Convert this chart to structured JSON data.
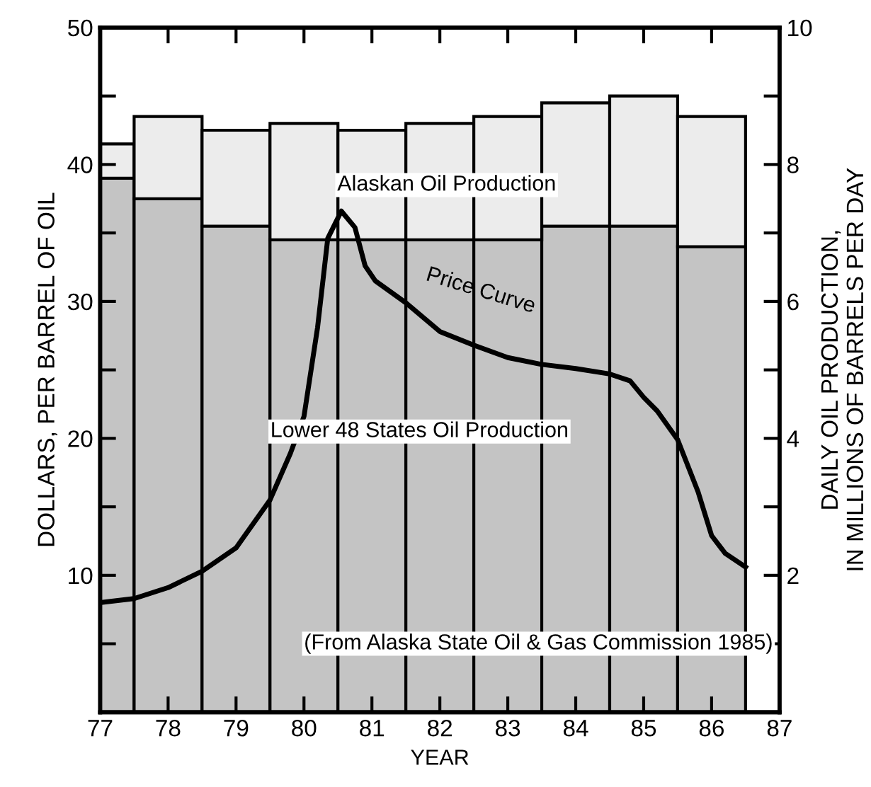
{
  "chart_data": {
    "type": "bar",
    "stacked": true,
    "xlabel": "YEAR",
    "ylabel": "DOLLARS, PER BARREL OF OIL",
    "y2label": "DAILY OIL PRODUCTION,\nIN MILLIONS OF BARRELS PER DAY",
    "x": [
      77,
      78,
      79,
      80,
      81,
      82,
      83,
      84,
      85,
      86
    ],
    "series": [
      {
        "name": "Lower 48 States Oil Production",
        "color": "#c4c4c4",
        "axis": "y2",
        "values": [
          7.8,
          7.5,
          7.1,
          6.9,
          6.9,
          6.9,
          6.9,
          7.1,
          7.1,
          6.8
        ]
      },
      {
        "name": "Alaskan Oil Production",
        "color": "#ececec",
        "axis": "y2",
        "values": [
          0.5,
          1.2,
          1.4,
          1.7,
          1.6,
          1.7,
          1.8,
          1.8,
          1.9,
          1.9
        ]
      },
      {
        "name": "Price Curve",
        "type": "line",
        "color": "#000000",
        "x": [
          77,
          77.5,
          78,
          78.5,
          79,
          79.5,
          79.8,
          80,
          80.2,
          80.35,
          80.55,
          80.75,
          80.9,
          81.05,
          81.5,
          82,
          82.5,
          83,
          83.5,
          84,
          84.5,
          84.8,
          85,
          85.2,
          85.5,
          85.8,
          86,
          86.2,
          86.5
        ],
        "values": [
          8.0,
          8.3,
          9.1,
          10.3,
          12.0,
          15.5,
          18.9,
          21.6,
          28.1,
          34.6,
          36.6,
          35.4,
          32.6,
          31.5,
          29.9,
          27.8,
          26.8,
          25.9,
          25.4,
          25.1,
          24.7,
          24.2,
          23.0,
          22.0,
          19.9,
          16.1,
          12.9,
          11.6,
          10.6
        ]
      }
    ],
    "xlim": [
      77,
      87
    ],
    "xticks": [
      77,
      78,
      79,
      80,
      81,
      82,
      83,
      84,
      85,
      86,
      87
    ],
    "ylim": [
      0,
      50
    ],
    "yticks": [
      {
        "value": 5,
        "label": null
      },
      10,
      {
        "value": 15,
        "label": null
      },
      20,
      {
        "value": 25,
        "label": null
      },
      30,
      {
        "value": 35,
        "label": null
      },
      40,
      {
        "value": 45,
        "label": null
      },
      50
    ],
    "y2lim": [
      0,
      10
    ],
    "y2ticks": [
      {
        "value": 1,
        "label": null
      },
      2,
      {
        "value": 3,
        "label": null
      },
      4,
      {
        "value": 5,
        "label": null
      },
      6,
      {
        "value": 7,
        "label": null
      },
      8,
      {
        "value": 9,
        "label": null
      },
      10
    ],
    "annotations": [
      "(From Alaska State Oil & Gas Commission 1985)"
    ],
    "grid": false,
    "legend": false,
    "line_style": "solid",
    "marker": "none"
  }
}
